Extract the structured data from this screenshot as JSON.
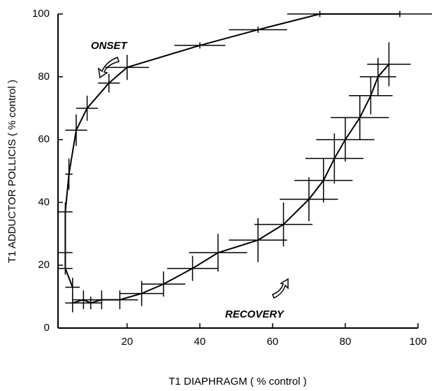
{
  "chart_data": {
    "type": "scatter",
    "x_label": "T1 DIAPHRAGM ( % control )",
    "y_label": "T1 ADDUCTOR POLLICIS ( % control )",
    "xlim": [
      1,
      100
    ],
    "ylim": [
      0,
      100
    ],
    "xticks": [
      20,
      40,
      60,
      80,
      100
    ],
    "yticks": [
      0,
      20,
      40,
      60,
      80,
      100
    ],
    "color": "#000000",
    "series": [
      {
        "name": "ONSET",
        "x": [
          5,
          3,
          3,
          3,
          4,
          6,
          9,
          15,
          20,
          40,
          56,
          73,
          95
        ],
        "y": [
          13,
          19,
          24,
          37,
          49,
          63,
          70,
          78,
          83,
          90,
          95,
          100,
          100
        ],
        "xerr": [
          2,
          2,
          2,
          2,
          1,
          3,
          3,
          3,
          6,
          7,
          8,
          9,
          9
        ],
        "yerr": [
          3,
          2,
          2,
          3,
          5,
          5,
          4,
          3,
          4,
          1,
          1,
          1,
          1
        ]
      },
      {
        "name": "RECOVERY",
        "x": [
          5,
          8,
          10,
          13,
          18,
          24,
          30,
          38,
          45,
          56,
          63,
          70,
          74,
          77,
          80,
          84,
          87,
          89,
          92
        ],
        "y": [
          8,
          9,
          8,
          9,
          9,
          11,
          14,
          19,
          24,
          28,
          33,
          41,
          47,
          54,
          60,
          67,
          74,
          80,
          84
        ],
        "xerr": [
          2,
          3,
          3,
          3,
          5,
          6,
          6,
          7,
          8,
          8,
          8,
          8,
          8,
          8,
          8,
          8,
          6,
          5,
          6
        ],
        "yerr": [
          3,
          3,
          2,
          3,
          3,
          4,
          4,
          4,
          6,
          7,
          7,
          7,
          7,
          8,
          7,
          7,
          6,
          6,
          7
        ]
      }
    ]
  }
}
